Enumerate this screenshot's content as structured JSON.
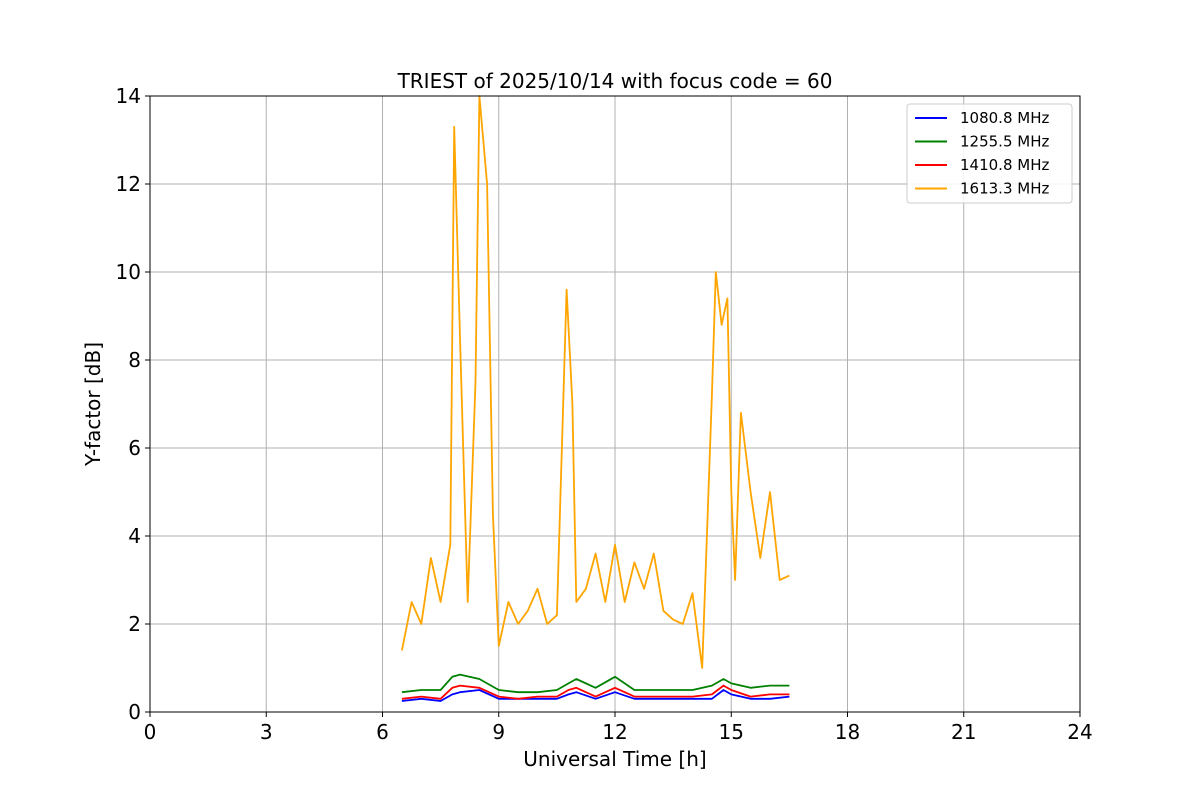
{
  "chart_data": {
    "type": "line",
    "title": "TRIEST of 2025/10/14 with focus code = 60",
    "xlabel": "Universal Time [h]",
    "ylabel": "Y-factor [dB]",
    "xlim": [
      0,
      24
    ],
    "ylim": [
      0,
      14
    ],
    "xticks": [
      0,
      3,
      6,
      9,
      12,
      15,
      18,
      21,
      24
    ],
    "yticks": [
      0,
      2,
      4,
      6,
      8,
      10,
      12,
      14
    ],
    "grid": true,
    "legend_position": "top-right",
    "series": [
      {
        "name": "1080.8 MHz",
        "color": "#0000ff",
        "x": [
          6.5,
          7.0,
          7.5,
          7.8,
          8.0,
          8.5,
          9.0,
          9.5,
          10.0,
          10.5,
          10.8,
          11.0,
          11.5,
          12.0,
          12.5,
          13.0,
          13.5,
          14.0,
          14.5,
          14.8,
          15.0,
          15.5,
          16.0,
          16.5
        ],
        "y": [
          0.25,
          0.3,
          0.25,
          0.4,
          0.45,
          0.5,
          0.3,
          0.3,
          0.3,
          0.3,
          0.4,
          0.45,
          0.3,
          0.45,
          0.3,
          0.3,
          0.3,
          0.3,
          0.3,
          0.5,
          0.4,
          0.3,
          0.3,
          0.35
        ]
      },
      {
        "name": "1255.5 MHz",
        "color": "#008000",
        "x": [
          6.5,
          7.0,
          7.5,
          7.8,
          8.0,
          8.5,
          9.0,
          9.5,
          10.0,
          10.5,
          10.8,
          11.0,
          11.5,
          12.0,
          12.5,
          13.0,
          13.5,
          14.0,
          14.5,
          14.8,
          15.0,
          15.5,
          16.0,
          16.5
        ],
        "y": [
          0.45,
          0.5,
          0.5,
          0.8,
          0.85,
          0.75,
          0.5,
          0.45,
          0.45,
          0.5,
          0.65,
          0.75,
          0.55,
          0.8,
          0.5,
          0.5,
          0.5,
          0.5,
          0.6,
          0.75,
          0.65,
          0.55,
          0.6,
          0.6
        ]
      },
      {
        "name": "1410.8 MHz",
        "color": "#ff0000",
        "x": [
          6.5,
          7.0,
          7.5,
          7.8,
          8.0,
          8.5,
          9.0,
          9.5,
          10.0,
          10.5,
          10.8,
          11.0,
          11.5,
          12.0,
          12.5,
          13.0,
          13.5,
          14.0,
          14.5,
          14.8,
          15.0,
          15.5,
          16.0,
          16.5
        ],
        "y": [
          0.3,
          0.35,
          0.3,
          0.55,
          0.6,
          0.55,
          0.35,
          0.3,
          0.35,
          0.35,
          0.5,
          0.55,
          0.35,
          0.55,
          0.35,
          0.35,
          0.35,
          0.35,
          0.4,
          0.6,
          0.5,
          0.35,
          0.4,
          0.4
        ]
      },
      {
        "name": "1613.3 MHz",
        "color": "#ffa500",
        "x": [
          6.5,
          6.75,
          7.0,
          7.25,
          7.5,
          7.75,
          7.85,
          8.0,
          8.2,
          8.4,
          8.5,
          8.7,
          8.85,
          9.0,
          9.25,
          9.5,
          9.75,
          10.0,
          10.25,
          10.5,
          10.75,
          10.9,
          11.0,
          11.25,
          11.5,
          11.75,
          12.0,
          12.25,
          12.5,
          12.75,
          13.0,
          13.25,
          13.5,
          13.75,
          14.0,
          14.25,
          14.5,
          14.6,
          14.75,
          14.9,
          15.0,
          15.1,
          15.25,
          15.5,
          15.75,
          16.0,
          16.25,
          16.5
        ],
        "y": [
          1.4,
          2.5,
          2.0,
          3.5,
          2.5,
          3.8,
          13.3,
          8.5,
          2.5,
          7.5,
          14.0,
          12.0,
          4.5,
          1.5,
          2.5,
          2.0,
          2.3,
          2.8,
          2.0,
          2.2,
          9.6,
          7.0,
          2.5,
          2.8,
          3.6,
          2.5,
          3.8,
          2.5,
          3.4,
          2.8,
          3.6,
          2.3,
          2.1,
          2.0,
          2.7,
          1.0,
          7.2,
          10.0,
          8.8,
          9.4,
          5.0,
          3.0,
          6.8,
          5.0,
          3.5,
          5.0,
          3.0,
          3.1
        ]
      }
    ]
  }
}
